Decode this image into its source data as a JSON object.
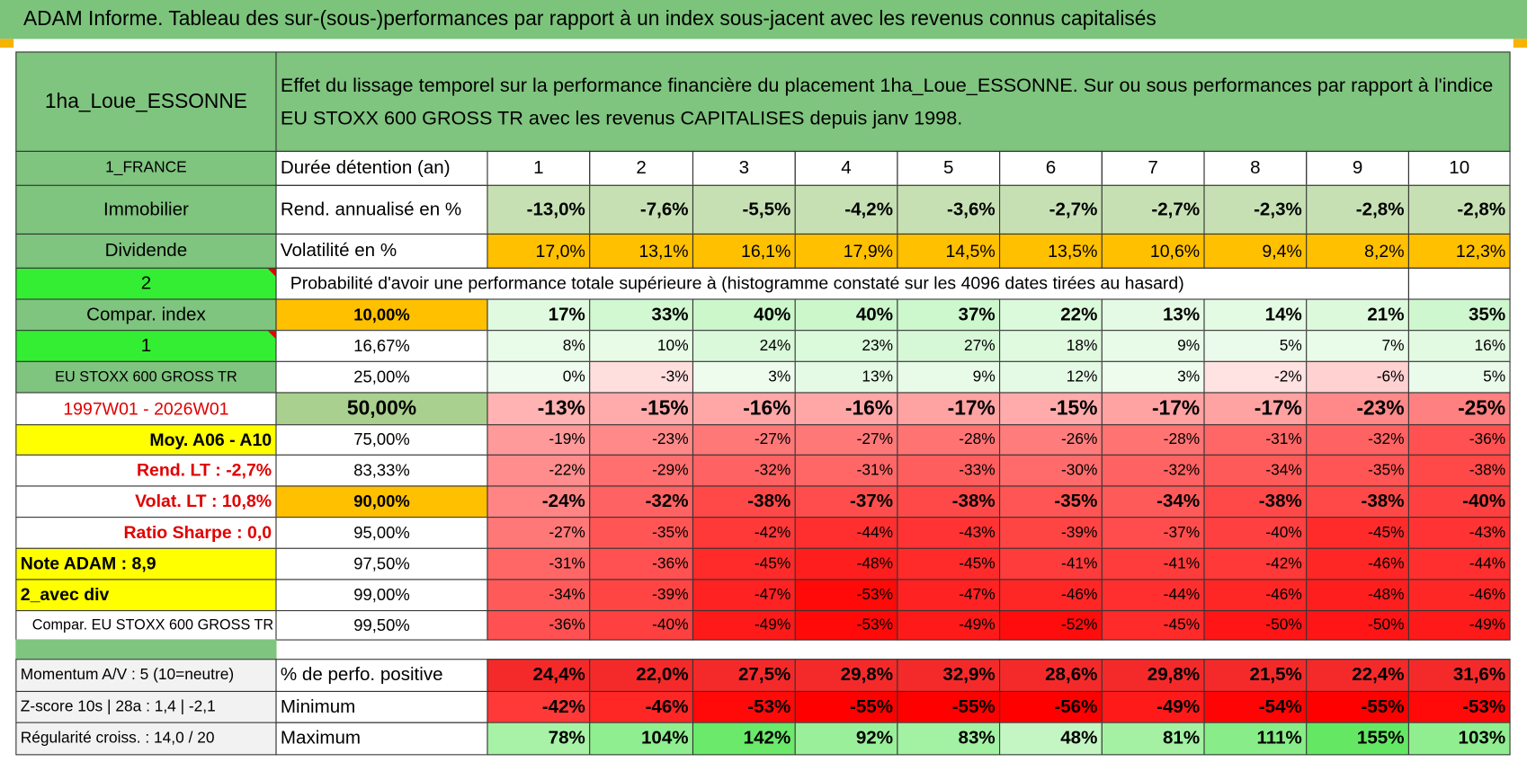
{
  "header": {
    "title": "ADAM Informe. Tableau des sur-(sous-)performances par rapport à un index sous-jacent avec les revenus connus capitalisés"
  },
  "table": {
    "name": "1ha_Loue_ESSONNE",
    "description": "Effet du lissage temporel sur la performance financière du placement 1ha_Loue_ESSONNE. Sur ou sous performances par rapport à l'indice EU STOXX 600 GROSS TR avec les revenus CAPITALISES depuis janv 1998.",
    "left_labels": [
      "1_FRANCE",
      "Immobilier",
      "Dividende",
      "2",
      "Compar. index",
      "1",
      "EU STOXX 600 GROSS TR",
      "1997W01 - 2026W01",
      "Moy. A06 - A10",
      "Rend. LT :   -2,7%",
      "Volat. LT :   10,8%",
      "Ratio Sharpe :    0,0",
      "Note ADAM : 8,9",
      "2_avec div",
      "Compar. EU STOXX 600 GROSS TR"
    ],
    "holding_label": "Durée détention (an)",
    "years": [
      1,
      2,
      3,
      4,
      5,
      6,
      7,
      8,
      9,
      10
    ],
    "rows": [
      {
        "label": "Rend. annualisé en %",
        "values": [
          "-13,0%",
          "-7,6%",
          "-5,5%",
          "-4,2%",
          "-3,6%",
          "-2,7%",
          "-2,7%",
          "-2,3%",
          "-2,8%",
          "-2,8%"
        ]
      },
      {
        "label": "Volatilité en %",
        "values": [
          "17,0%",
          "13,1%",
          "16,1%",
          "17,9%",
          "14,5%",
          "13,5%",
          "10,6%",
          "9,4%",
          "8,2%",
          "12,3%"
        ]
      }
    ],
    "probability_title": "Probabilité d'avoir une performance totale supérieure à (histogramme constaté sur les 4096 dates tirées au hasard)",
    "quantiles": [
      {
        "label": "10,00%",
        "values": [
          "17%",
          "33%",
          "40%",
          "40%",
          "37%",
          "22%",
          "13%",
          "14%",
          "21%",
          "35%"
        ]
      },
      {
        "label": "16,67%",
        "values": [
          "8%",
          "10%",
          "24%",
          "23%",
          "27%",
          "18%",
          "9%",
          "5%",
          "7%",
          "16%"
        ]
      },
      {
        "label": "25,00%",
        "values": [
          "0%",
          "-3%",
          "3%",
          "13%",
          "9%",
          "12%",
          "3%",
          "-2%",
          "-6%",
          "5%"
        ]
      },
      {
        "label": "50,00%",
        "values": [
          "-13%",
          "-15%",
          "-16%",
          "-16%",
          "-17%",
          "-15%",
          "-17%",
          "-17%",
          "-23%",
          "-25%"
        ]
      },
      {
        "label": "75,00%",
        "values": [
          "-19%",
          "-23%",
          "-27%",
          "-27%",
          "-28%",
          "-26%",
          "-28%",
          "-31%",
          "-32%",
          "-36%"
        ]
      },
      {
        "label": "83,33%",
        "values": [
          "-22%",
          "-29%",
          "-32%",
          "-31%",
          "-33%",
          "-30%",
          "-32%",
          "-34%",
          "-35%",
          "-38%"
        ]
      },
      {
        "label": "90,00%",
        "values": [
          "-24%",
          "-32%",
          "-38%",
          "-37%",
          "-38%",
          "-35%",
          "-34%",
          "-38%",
          "-38%",
          "-40%"
        ]
      },
      {
        "label": "95,00%",
        "values": [
          "-27%",
          "-35%",
          "-42%",
          "-44%",
          "-43%",
          "-39%",
          "-37%",
          "-40%",
          "-45%",
          "-43%"
        ]
      },
      {
        "label": "97,50%",
        "values": [
          "-31%",
          "-36%",
          "-45%",
          "-48%",
          "-45%",
          "-41%",
          "-41%",
          "-42%",
          "-46%",
          "-44%"
        ]
      },
      {
        "label": "99,00%",
        "values": [
          "-34%",
          "-39%",
          "-47%",
          "-53%",
          "-47%",
          "-46%",
          "-44%",
          "-46%",
          "-48%",
          "-46%"
        ]
      },
      {
        "label": "99,50%",
        "values": [
          "-36%",
          "-40%",
          "-49%",
          "-53%",
          "-49%",
          "-52%",
          "-45%",
          "-50%",
          "-50%",
          "-49%"
        ]
      }
    ],
    "bottom_left": [
      "Momentum A/V : 5 (10=neutre)",
      "Z-score 10s | 28a : 1,4 | -2,1",
      "Régularité croiss. : 14,0 / 20"
    ],
    "bottom_rows": [
      {
        "label": "% de perfo. positive",
        "values": [
          "24,4%",
          "22,0%",
          "27,5%",
          "29,8%",
          "32,9%",
          "28,6%",
          "29,8%",
          "21,5%",
          "22,4%",
          "31,6%"
        ]
      },
      {
        "label": "Minimum",
        "values": [
          "-42%",
          "-46%",
          "-53%",
          "-55%",
          "-55%",
          "-56%",
          "-49%",
          "-54%",
          "-55%",
          "-53%"
        ]
      },
      {
        "label": "Maximum",
        "values": [
          "78%",
          "104%",
          "142%",
          "92%",
          "83%",
          "48%",
          "81%",
          "111%",
          "155%",
          "103%"
        ]
      }
    ]
  }
}
